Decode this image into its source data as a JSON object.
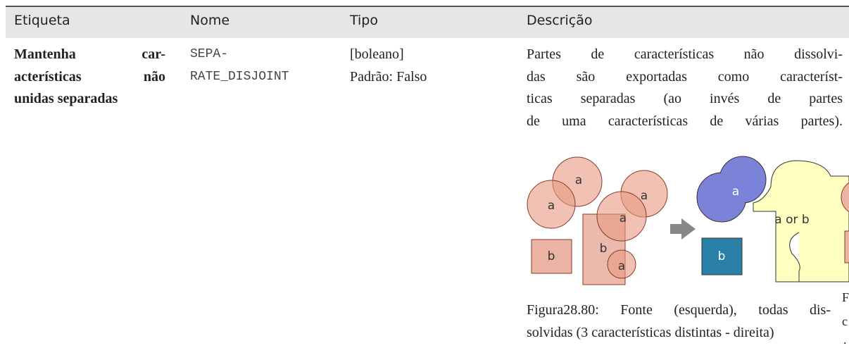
{
  "table": {
    "headers": [
      "Etiqueta",
      "Nome",
      "Tipo",
      "Descrição"
    ],
    "rows": [
      {
        "label_lines": [
          "Mantenha car-",
          "acterísticas não",
          "unidas separadas"
        ],
        "name_lines": [
          "SEPA-",
          "RATE_DISJOINT"
        ],
        "type_lines": [
          "[boleano]",
          "Padrão: Falso"
        ],
        "description_lines": [
          "Partes de características não dissolvi-",
          "das são exportadas como característ-",
          "ticas separadas (ao invés de partes",
          "de uma características de várias partes)."
        ],
        "figure_labels": [
          "a",
          "a",
          "a",
          "a",
          "b",
          "b",
          "a",
          "a",
          "b",
          "a or b"
        ],
        "caption_lines": [
          "Figura28.80: Fonte (esquerda), todas dis-",
          "solvidas (3 características distintas - direita)"
        ],
        "caption_overflow": [
          "F",
          "c",
          "."
        ]
      }
    ]
  }
}
